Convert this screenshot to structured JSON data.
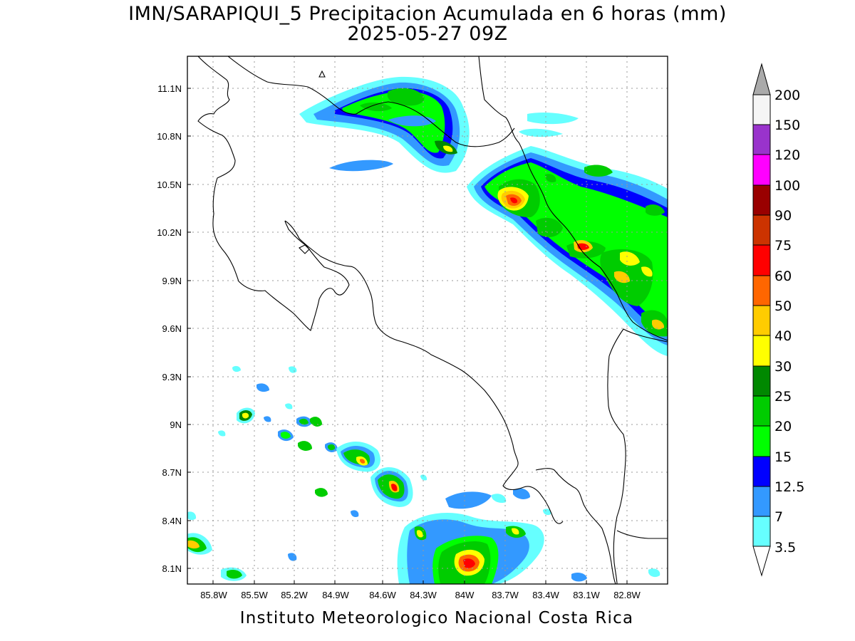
{
  "title": "IMN/SARAPIQUI_5 Precipitacion Acumulada en 6 horas (mm)",
  "subtitle": "2025-05-27 09Z",
  "footer": "Instituto Meteorologico Nacional Costa Rica",
  "map": {
    "lon_range": [
      -86.05,
      -83.05
    ],
    "lat_range": [
      8.0,
      11.3
    ],
    "y_ticks": [
      "11.1N",
      "10.8N",
      "10.5N",
      "10.2N",
      "9.9N",
      "9.6N",
      "9.3N",
      "9N",
      "8.7N",
      "8.4N",
      "8.1N"
    ],
    "x_ticks": [
      "85.8W",
      "85.5W",
      "85.2W",
      "84.9W",
      "84.6W",
      "84.3W",
      "84W",
      "83.7W",
      "83.4W",
      "83.1W",
      "82.8W"
    ],
    "grid": true
  },
  "legend": {
    "levels": [
      "3.5",
      "7",
      "12.5",
      "15",
      "20",
      "25",
      "30",
      "40",
      "50",
      "60",
      "75",
      "90",
      "100",
      "120",
      "150",
      "200"
    ],
    "colors": [
      "#66ffff",
      "#3399ff",
      "#0000ff",
      "#00ff00",
      "#00cc00",
      "#008800",
      "#ffff00",
      "#ffcc00",
      "#ff6600",
      "#ff0000",
      "#cc3300",
      "#990000",
      "#ff00ff",
      "#9933cc",
      "#f5f5f5",
      "#aaaaaa"
    ]
  }
}
